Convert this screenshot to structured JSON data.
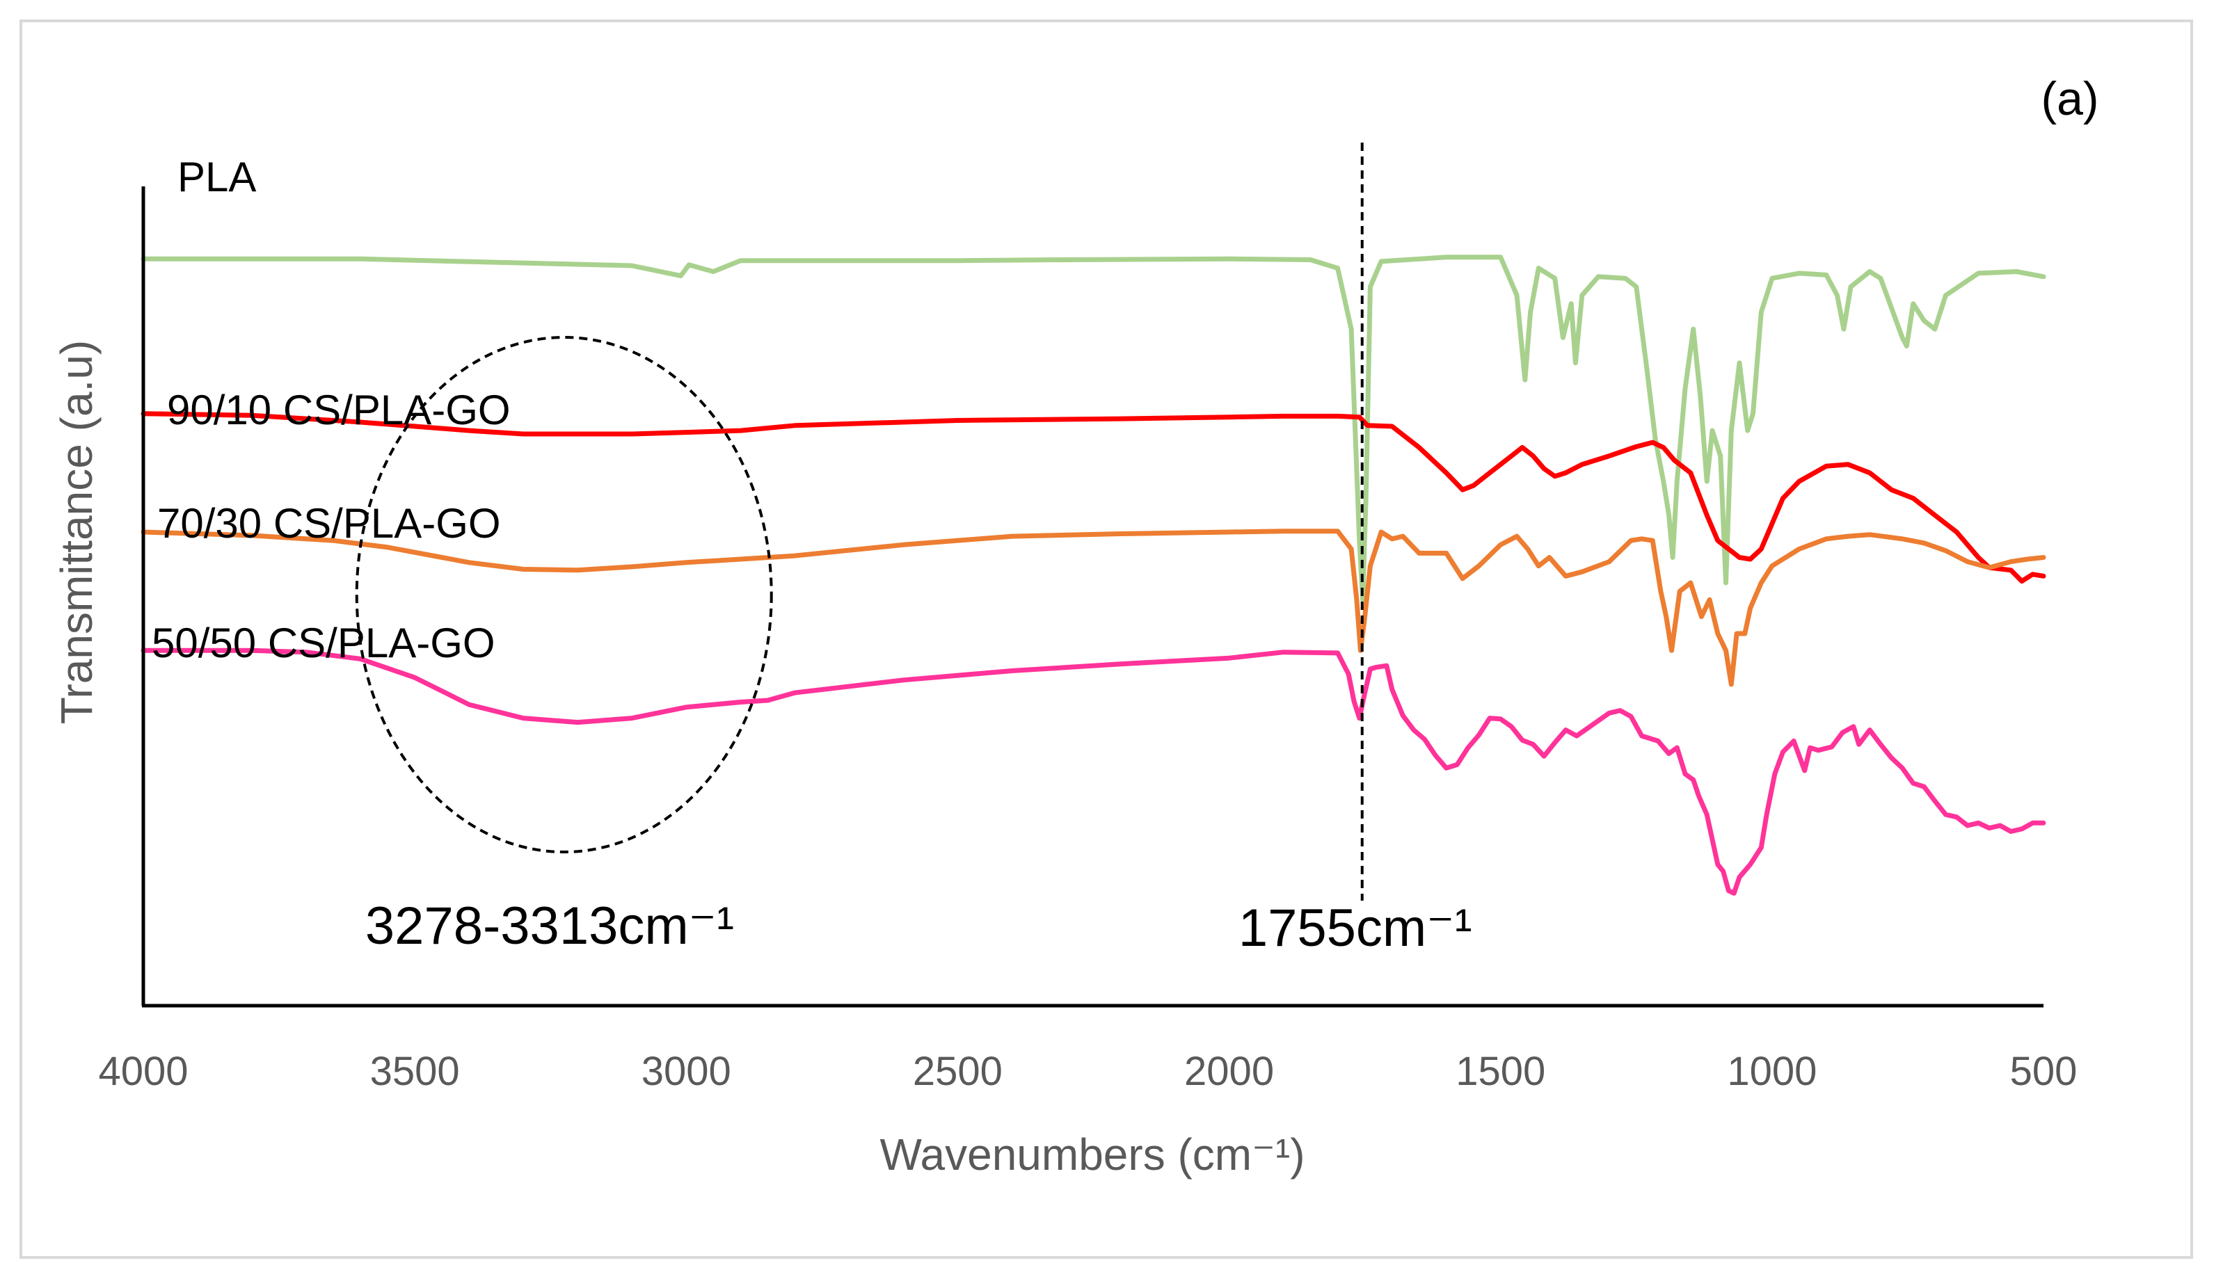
{
  "chart_data": {
    "type": "line",
    "title": "",
    "panel_label": "(a)",
    "xlabel": "Wavenumbers (cm⁻¹)",
    "ylabel": "Transmittance (a.u)",
    "xlim": [
      4000,
      500
    ],
    "x_reversed": true,
    "ylim": [
      0,
      100
    ],
    "x_ticks": [
      4000,
      3500,
      3000,
      2500,
      2000,
      1500,
      1000,
      500
    ],
    "x_tick_labels": [
      "4000",
      "3500",
      "3000",
      "2500",
      "2000",
      "1500",
      "1000",
      "500"
    ],
    "grid": false,
    "series": [
      {
        "name": "PLA",
        "color": "#A9D18E",
        "points": [
          [
            4000,
            88.3
          ],
          [
            3600,
            88.3
          ],
          [
            3100,
            87.5
          ],
          [
            3010,
            86.3
          ],
          [
            2995,
            87.6
          ],
          [
            2950,
            86.8
          ],
          [
            2900,
            88.1
          ],
          [
            2500,
            88.1
          ],
          [
            2300,
            88.2
          ],
          [
            2000,
            88.3
          ],
          [
            1850,
            88.2
          ],
          [
            1800,
            87.2
          ],
          [
            1775,
            80
          ],
          [
            1760,
            55
          ],
          [
            1754,
            48
          ],
          [
            1748,
            60
          ],
          [
            1740,
            85
          ],
          [
            1720,
            88
          ],
          [
            1600,
            88.5
          ],
          [
            1500,
            88.5
          ],
          [
            1470,
            84
          ],
          [
            1455,
            74
          ],
          [
            1445,
            82
          ],
          [
            1430,
            87.2
          ],
          [
            1400,
            86
          ],
          [
            1385,
            79
          ],
          [
            1370,
            83
          ],
          [
            1362,
            76
          ],
          [
            1350,
            84
          ],
          [
            1320,
            86.2
          ],
          [
            1270,
            86
          ],
          [
            1250,
            85
          ],
          [
            1230,
            75
          ],
          [
            1215,
            67
          ],
          [
            1200,
            62
          ],
          [
            1190,
            58
          ],
          [
            1183,
            53
          ],
          [
            1175,
            62
          ],
          [
            1160,
            73
          ],
          [
            1145,
            80
          ],
          [
            1132,
            72
          ],
          [
            1120,
            62
          ],
          [
            1110,
            68
          ],
          [
            1095,
            65
          ],
          [
            1085,
            50
          ],
          [
            1075,
            68
          ],
          [
            1060,
            76
          ],
          [
            1045,
            68
          ],
          [
            1035,
            70
          ],
          [
            1020,
            82
          ],
          [
            1000,
            86
          ],
          [
            950,
            86.6
          ],
          [
            900,
            86.4
          ],
          [
            880,
            84
          ],
          [
            868,
            80
          ],
          [
            855,
            85
          ],
          [
            820,
            86.8
          ],
          [
            800,
            86
          ],
          [
            760,
            79
          ],
          [
            752,
            78
          ],
          [
            740,
            83
          ],
          [
            720,
            81
          ],
          [
            700,
            80
          ],
          [
            680,
            84
          ],
          [
            620,
            86.6
          ],
          [
            550,
            86.8
          ],
          [
            500,
            86.2
          ]
        ]
      },
      {
        "name": "90/10 CS/PLA-GO",
        "color": "#FF0000",
        "points": [
          [
            4000,
            70
          ],
          [
            3800,
            69.8
          ],
          [
            3600,
            69
          ],
          [
            3500,
            68.5
          ],
          [
            3400,
            68
          ],
          [
            3300,
            67.6
          ],
          [
            3200,
            67.6
          ],
          [
            3100,
            67.6
          ],
          [
            3000,
            67.8
          ],
          [
            2900,
            68
          ],
          [
            2800,
            68.6
          ],
          [
            2500,
            69.2
          ],
          [
            2200,
            69.4
          ],
          [
            2000,
            69.6
          ],
          [
            1900,
            69.7
          ],
          [
            1800,
            69.7
          ],
          [
            1760,
            69.6
          ],
          [
            1745,
            68.6
          ],
          [
            1700,
            68.5
          ],
          [
            1650,
            66
          ],
          [
            1600,
            63
          ],
          [
            1570,
            61
          ],
          [
            1550,
            61.5
          ],
          [
            1520,
            63
          ],
          [
            1480,
            65
          ],
          [
            1460,
            66
          ],
          [
            1440,
            65
          ],
          [
            1420,
            63.5
          ],
          [
            1400,
            62.6
          ],
          [
            1380,
            63
          ],
          [
            1350,
            64
          ],
          [
            1300,
            65
          ],
          [
            1250,
            66.1
          ],
          [
            1220,
            66.6
          ],
          [
            1200,
            66
          ],
          [
            1180,
            64.5
          ],
          [
            1150,
            63
          ],
          [
            1120,
            58
          ],
          [
            1100,
            55
          ],
          [
            1080,
            54
          ],
          [
            1060,
            53
          ],
          [
            1040,
            52.8
          ],
          [
            1020,
            54
          ],
          [
            1000,
            57
          ],
          [
            980,
            60
          ],
          [
            950,
            62
          ],
          [
            900,
            63.8
          ],
          [
            860,
            64
          ],
          [
            820,
            63
          ],
          [
            780,
            61
          ],
          [
            740,
            60
          ],
          [
            700,
            58
          ],
          [
            660,
            56
          ],
          [
            620,
            53
          ],
          [
            600,
            51.8
          ],
          [
            560,
            51.5
          ],
          [
            540,
            50.2
          ],
          [
            520,
            51
          ],
          [
            500,
            50.8
          ]
        ]
      },
      {
        "name": "70/30 CS/PLA-GO",
        "color": "#ED7D31",
        "points": [
          [
            4000,
            56
          ],
          [
            3800,
            55.6
          ],
          [
            3650,
            55
          ],
          [
            3550,
            54.2
          ],
          [
            3450,
            53
          ],
          [
            3400,
            52.4
          ],
          [
            3300,
            51.6
          ],
          [
            3200,
            51.5
          ],
          [
            3100,
            51.9
          ],
          [
            3000,
            52.4
          ],
          [
            2900,
            52.8
          ],
          [
            2800,
            53.2
          ],
          [
            2600,
            54.5
          ],
          [
            2400,
            55.5
          ],
          [
            2200,
            55.8
          ],
          [
            2000,
            56
          ],
          [
            1900,
            56.1
          ],
          [
            1800,
            56.1
          ],
          [
            1775,
            54
          ],
          [
            1765,
            48
          ],
          [
            1758,
            42
          ],
          [
            1750,
            46
          ],
          [
            1740,
            52
          ],
          [
            1720,
            56
          ],
          [
            1700,
            55.2
          ],
          [
            1680,
            55.5
          ],
          [
            1650,
            53.5
          ],
          [
            1600,
            53.5
          ],
          [
            1570,
            50.5
          ],
          [
            1540,
            52
          ],
          [
            1500,
            54.5
          ],
          [
            1470,
            55.5
          ],
          [
            1450,
            54
          ],
          [
            1430,
            52
          ],
          [
            1410,
            53
          ],
          [
            1380,
            50.8
          ],
          [
            1350,
            51.3
          ],
          [
            1300,
            52.5
          ],
          [
            1260,
            55
          ],
          [
            1240,
            55.2
          ],
          [
            1220,
            55
          ],
          [
            1205,
            49
          ],
          [
            1195,
            46
          ],
          [
            1185,
            42
          ],
          [
            1170,
            49
          ],
          [
            1150,
            50
          ],
          [
            1130,
            46
          ],
          [
            1115,
            48
          ],
          [
            1100,
            44
          ],
          [
            1085,
            42
          ],
          [
            1075,
            38
          ],
          [
            1065,
            44
          ],
          [
            1050,
            44
          ],
          [
            1040,
            47
          ],
          [
            1020,
            50
          ],
          [
            1000,
            52
          ],
          [
            950,
            54
          ],
          [
            900,
            55.2
          ],
          [
            860,
            55.5
          ],
          [
            820,
            55.7
          ],
          [
            760,
            55.2
          ],
          [
            720,
            54.7
          ],
          [
            680,
            53.8
          ],
          [
            640,
            52.5
          ],
          [
            600,
            51.8
          ],
          [
            560,
            52.5
          ],
          [
            530,
            52.8
          ],
          [
            500,
            53
          ]
        ]
      },
      {
        "name": "50/50 CS/PLA-GO",
        "color": "#FF3399",
        "points": [
          [
            4000,
            42
          ],
          [
            3800,
            42
          ],
          [
            3700,
            41.8
          ],
          [
            3600,
            41
          ],
          [
            3500,
            38.8
          ],
          [
            3450,
            37.2
          ],
          [
            3400,
            35.6
          ],
          [
            3300,
            34
          ],
          [
            3200,
            33.5
          ],
          [
            3100,
            34
          ],
          [
            3000,
            35.3
          ],
          [
            2900,
            35.9
          ],
          [
            2850,
            36.1
          ],
          [
            2800,
            37
          ],
          [
            2600,
            38.5
          ],
          [
            2400,
            39.6
          ],
          [
            2200,
            40.4
          ],
          [
            2000,
            41.1
          ],
          [
            1900,
            41.8
          ],
          [
            1800,
            41.7
          ],
          [
            1780,
            39.2
          ],
          [
            1770,
            36
          ],
          [
            1760,
            34
          ],
          [
            1750,
            37
          ],
          [
            1740,
            39.8
          ],
          [
            1730,
            40
          ],
          [
            1710,
            40.2
          ],
          [
            1700,
            37.4
          ],
          [
            1680,
            34.3
          ],
          [
            1660,
            32.6
          ],
          [
            1640,
            31.5
          ],
          [
            1620,
            29.6
          ],
          [
            1600,
            28.1
          ],
          [
            1580,
            28.5
          ],
          [
            1560,
            30.5
          ],
          [
            1540,
            32
          ],
          [
            1520,
            34
          ],
          [
            1500,
            33.9
          ],
          [
            1480,
            33
          ],
          [
            1460,
            31.4
          ],
          [
            1440,
            30.9
          ],
          [
            1420,
            29.5
          ],
          [
            1400,
            31.1
          ],
          [
            1380,
            32.6
          ],
          [
            1360,
            31.9
          ],
          [
            1340,
            32.8
          ],
          [
            1300,
            34.6
          ],
          [
            1280,
            34.9
          ],
          [
            1260,
            34.2
          ],
          [
            1240,
            31.9
          ],
          [
            1210,
            31.3
          ],
          [
            1190,
            29.8
          ],
          [
            1175,
            30.5
          ],
          [
            1160,
            27.4
          ],
          [
            1145,
            26.7
          ],
          [
            1135,
            24.8
          ],
          [
            1120,
            22.6
          ],
          [
            1100,
            16.7
          ],
          [
            1090,
            15.9
          ],
          [
            1080,
            13.6
          ],
          [
            1070,
            13.3
          ],
          [
            1060,
            15.2
          ],
          [
            1040,
            16.7
          ],
          [
            1020,
            18.7
          ],
          [
            1010,
            22.6
          ],
          [
            995,
            27.4
          ],
          [
            980,
            30
          ],
          [
            960,
            31.3
          ],
          [
            940,
            27.8
          ],
          [
            930,
            30.5
          ],
          [
            915,
            30.2
          ],
          [
            890,
            30.6
          ],
          [
            870,
            32.3
          ],
          [
            850,
            33
          ],
          [
            840,
            30.9
          ],
          [
            820,
            32.6
          ],
          [
            800,
            30.9
          ],
          [
            780,
            29.3
          ],
          [
            760,
            28.1
          ],
          [
            740,
            26.3
          ],
          [
            720,
            25.9
          ],
          [
            700,
            24.2
          ],
          [
            680,
            22.6
          ],
          [
            660,
            22.3
          ],
          [
            640,
            21.3
          ],
          [
            620,
            21.6
          ],
          [
            600,
            21
          ],
          [
            580,
            21.3
          ],
          [
            560,
            20.6
          ],
          [
            540,
            20.9
          ],
          [
            520,
            21.6
          ],
          [
            500,
            21.6
          ]
        ]
      }
    ],
    "annotations": [
      {
        "type": "vline",
        "x": 1755,
        "text": "1755cm⁻¹"
      },
      {
        "type": "ellipse",
        "center_x": 3225,
        "text": "3278-3313cm⁻¹"
      }
    ]
  }
}
